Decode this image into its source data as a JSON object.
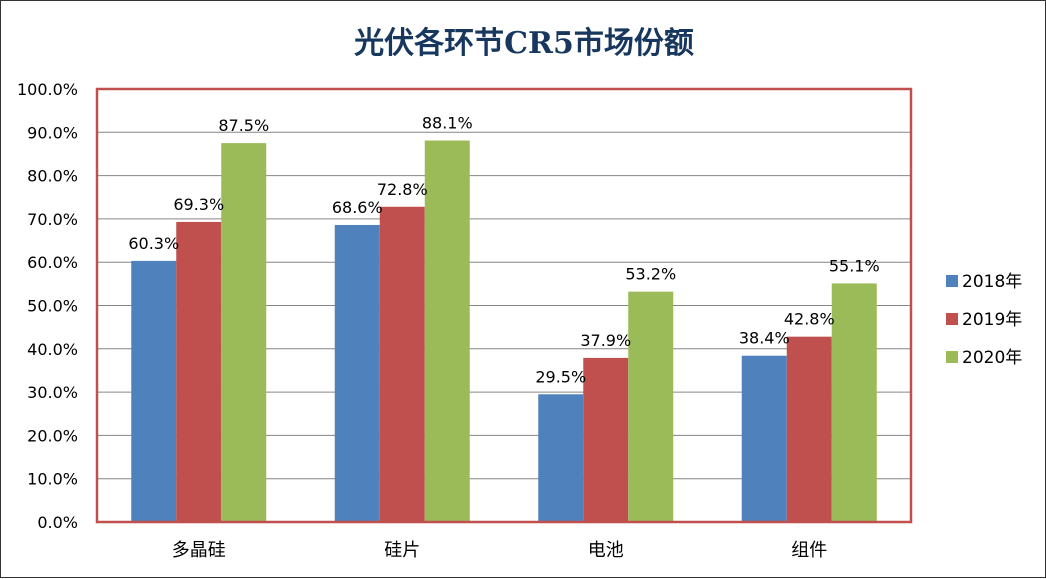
{
  "chart_data": {
    "type": "bar",
    "title": "光伏各环节CR5市场份额",
    "categories": [
      "多晶硅",
      "硅片",
      "电池",
      "组件"
    ],
    "series": [
      {
        "name": "2018年",
        "color": "#4f81bd",
        "values": [
          60.3,
          68.6,
          29.5,
          38.4
        ],
        "labels": [
          "60.3%",
          "68.6%",
          "29.5%",
          "38.4%"
        ]
      },
      {
        "name": "2019年",
        "color": "#c0504d",
        "values": [
          69.3,
          72.8,
          37.9,
          42.8
        ],
        "labels": [
          "69.3%",
          "72.8%",
          "37.9%",
          "42.8%"
        ]
      },
      {
        "name": "2020年",
        "color": "#9bbb59",
        "values": [
          87.5,
          88.1,
          53.2,
          55.1
        ],
        "labels": [
          "87.5%",
          "88.1%",
          "53.2%",
          "55.1%"
        ]
      }
    ],
    "yticks": [
      "0.0%",
      "10.0%",
      "20.0%",
      "30.0%",
      "40.0%",
      "50.0%",
      "60.0%",
      "70.0%",
      "80.0%",
      "90.0%",
      "100.0%"
    ],
    "ylim": [
      0,
      100
    ],
    "grid": true,
    "legend": "right",
    "plot_border_color": "#c0504d"
  }
}
